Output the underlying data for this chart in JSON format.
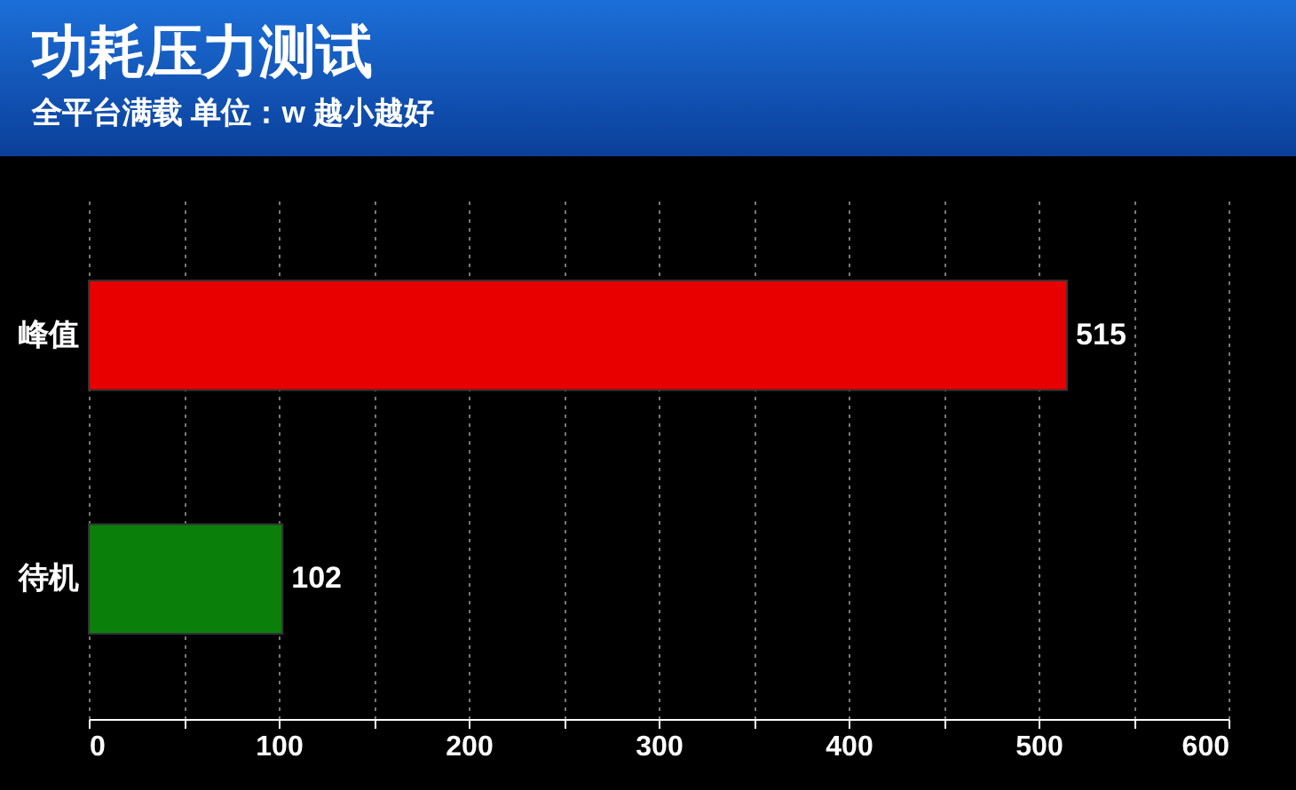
{
  "chart_data": {
    "type": "bar",
    "orientation": "horizontal",
    "title": "功耗压力测试",
    "subtitle": "全平台满载 单位：w 越小越好",
    "categories": [
      "峰值",
      "待机"
    ],
    "values": [
      515,
      102
    ],
    "colors": [
      "#e80000",
      "#0a800a"
    ],
    "xlim": [
      0,
      600
    ],
    "xticks": [
      0,
      {
        "value": 50,
        "label": null
      },
      100,
      {
        "value": 150,
        "label": null
      },
      200,
      {
        "value": 250,
        "label": null
      },
      300,
      {
        "value": 350,
        "label": null
      },
      400,
      {
        "value": 450,
        "label": null
      },
      500,
      {
        "value": 550,
        "label": null
      },
      600
    ],
    "grid": "x",
    "data_labels": true
  }
}
